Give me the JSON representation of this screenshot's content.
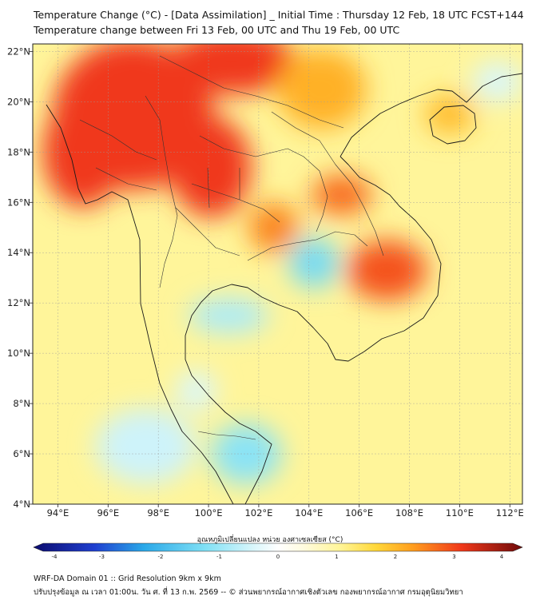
{
  "title_line1": "Temperature Change (°C) - [Data Assimilation] _ Initial Time : Thursday 12 Feb, 18 UTC FCST+144",
  "title_line2": "Temperature change between Fri 13 Feb, 00 UTC and Thu 19 Feb, 00 UTC",
  "map": {
    "lon_range": [
      93,
      112.5
    ],
    "lat_range": [
      4,
      22.3
    ],
    "lon_ticks": [
      {
        "value": 94,
        "label": "94°E"
      },
      {
        "value": 96,
        "label": "96°E"
      },
      {
        "value": 98,
        "label": "98°E"
      },
      {
        "value": 100,
        "label": "100°E"
      },
      {
        "value": 102,
        "label": "102°E"
      },
      {
        "value": 104,
        "label": "104°E"
      },
      {
        "value": 106,
        "label": "106°E"
      },
      {
        "value": 108,
        "label": "108°E"
      },
      {
        "value": 110,
        "label": "110°E"
      },
      {
        "value": 112,
        "label": "112°E"
      }
    ],
    "lat_ticks": [
      {
        "value": 4,
        "label": "4°N"
      },
      {
        "value": 6,
        "label": "6°N"
      },
      {
        "value": 8,
        "label": "8°N"
      },
      {
        "value": 10,
        "label": "10°N"
      },
      {
        "value": 12,
        "label": "12°N"
      },
      {
        "value": 14,
        "label": "14°N"
      },
      {
        "value": 16,
        "label": "16°N"
      },
      {
        "value": 18,
        "label": "18°N"
      },
      {
        "value": 20,
        "label": "20°N"
      },
      {
        "value": 22,
        "label": "22°N"
      }
    ]
  },
  "colorbar": {
    "label": "อุณหภูมิเปลี่ยนแปลง หน่วย องศาเซลเซียส (°C)",
    "min": -4,
    "max": 4,
    "ticks": [
      "-4",
      "-3",
      "-2",
      "-1",
      "0",
      "1",
      "2",
      "3",
      "4"
    ],
    "stops": [
      {
        "v": -4,
        "c": "#0b0b6e"
      },
      {
        "v": -3,
        "c": "#1f3fd0"
      },
      {
        "v": -2.2,
        "c": "#2aa8e8"
      },
      {
        "v": -1.2,
        "c": "#7fe0f5"
      },
      {
        "v": -0.4,
        "c": "#d9f6fb"
      },
      {
        "v": 0,
        "c": "#ffffff"
      },
      {
        "v": 0.4,
        "c": "#fffbe0"
      },
      {
        "v": 1,
        "c": "#fff59a"
      },
      {
        "v": 1.6,
        "c": "#ffd83a"
      },
      {
        "v": 2.2,
        "c": "#ff9e1e"
      },
      {
        "v": 3,
        "c": "#f0381a"
      },
      {
        "v": 4,
        "c": "#6e0a0a"
      }
    ]
  },
  "footer_line1": "WRF-DA Domain 01 :: Grid Resolution 9km x 9km",
  "footer_line2": "ปรับปรุงข้อมูล ณ เวลา 01:00น. วัน ศ. ที่ 13 ก.พ. 2569 -- © ส่วนพยากรณ์อากาศเชิงตัวเลข กองพยากรณ์อากาศ กรมอุตุนิยมวิทยา",
  "field_blobs": [
    {
      "name": "myanmar-north-hot",
      "lon": 97,
      "lat": 19.5,
      "rlon": 3.2,
      "rlat": 3.0,
      "v": 3.0
    },
    {
      "name": "myanmar-west-hot",
      "lon": 95.0,
      "lat": 18.0,
      "rlon": 1.6,
      "rlat": 2.2,
      "v": 3.0
    },
    {
      "name": "yunnan-hot",
      "lon": 101.0,
      "lat": 21.6,
      "rlon": 2.5,
      "rlat": 1.3,
      "v": 3.0
    },
    {
      "name": "north-thailand-hot",
      "lon": 100.1,
      "lat": 17.4,
      "rlon": 1.6,
      "rlat": 2.0,
      "v": 3.0
    },
    {
      "name": "laos-hot",
      "lon": 105.3,
      "lat": 16.3,
      "rlon": 1.2,
      "rlat": 0.8,
      "v": 2.6
    },
    {
      "name": "cambodia-east-hot",
      "lon": 107.1,
      "lat": 13.3,
      "rlon": 1.6,
      "rlat": 1.2,
      "v": 2.8
    },
    {
      "name": "vietnam-north-warm",
      "lon": 104.5,
      "lat": 20.5,
      "rlon": 1.8,
      "rlat": 1.6,
      "v": 2.0
    },
    {
      "name": "isan-warm",
      "lon": 102.6,
      "lat": 15.0,
      "rlon": 1.0,
      "rlat": 1.0,
      "v": 2.4
    },
    {
      "name": "hainan-warm",
      "lon": 109.6,
      "lat": 19.5,
      "rlon": 1.0,
      "rlat": 0.8,
      "v": 1.9
    },
    {
      "name": "tonle-sap-cool",
      "lon": 104.2,
      "lat": 13.6,
      "rlon": 1.0,
      "rlat": 1.0,
      "v": -1.3
    },
    {
      "name": "gulf-thailand-cool",
      "lon": 100.8,
      "lat": 11.5,
      "rlon": 1.6,
      "rlat": 0.7,
      "v": -0.8
    },
    {
      "name": "malaya-cool",
      "lon": 101.5,
      "lat": 6.0,
      "rlon": 1.4,
      "rlat": 1.2,
      "v": -1.1
    },
    {
      "name": "andaman-south-cool",
      "lon": 97.5,
      "lat": 6.3,
      "rlon": 2.0,
      "rlat": 1.5,
      "v": -0.5
    },
    {
      "name": "scs-east-cool",
      "lon": 111.5,
      "lat": 20.8,
      "rlon": 1.0,
      "rlat": 0.8,
      "v": -0.4
    },
    {
      "name": "isthmus-cool",
      "lon": 99.5,
      "lat": 8.5,
      "rlon": 0.8,
      "rlat": 0.8,
      "v": -0.4
    }
  ]
}
